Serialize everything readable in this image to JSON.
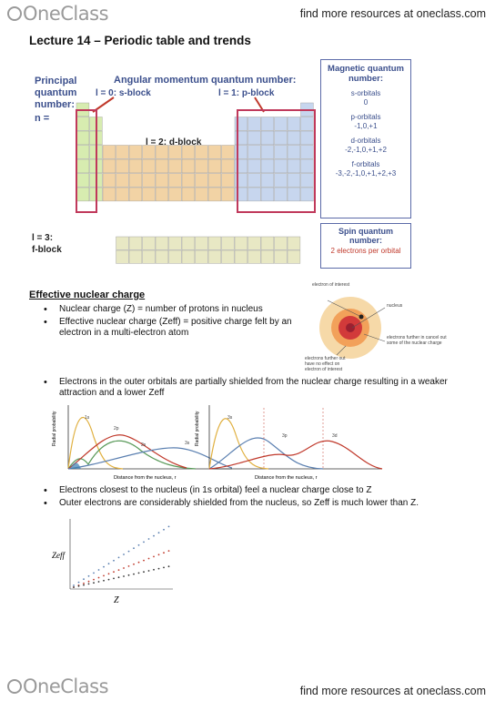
{
  "header": {
    "brand": "OneClass",
    "link": "find more resources at oneclass.com"
  },
  "footer": {
    "brand": "OneClass",
    "link": "find more resources at oneclass.com"
  },
  "title": "Lecture 14 – Periodic table and trends",
  "periodic_figure": {
    "principal_label": "Principal quantum number:",
    "n_label": "n =",
    "angular_label": "Angular momentum quantum number:",
    "l0_label": "l = 0: s-block",
    "l1_label": "l = 1: p-block",
    "l2_label": "l = 2: d-block",
    "l3_label": "l = 3:",
    "fblock_label": "f-block",
    "magnetic": {
      "title": "Magnetic quantum number:",
      "items": [
        {
          "name": "s-orbitals",
          "values": "0"
        },
        {
          "name": "p-orbitals",
          "values": "-1,0,+1"
        },
        {
          "name": "d-orbitals",
          "values": "-2,-1,0,+1,+2"
        },
        {
          "name": "f-orbitals",
          "values": "-3,-2,-1,0,+1,+2,+3"
        }
      ]
    },
    "spin": {
      "title": "Spin quantum number:",
      "value": "2 electrons per orbital"
    },
    "colors": {
      "red_label": "#c0392b",
      "blue_label": "#3b4f8c",
      "s_block": "#d7ecb0",
      "d_block": "#f2d3a5",
      "p_block": "#c7d6ee",
      "f_block": "#e8e8c4",
      "outline": "#c0395b"
    }
  },
  "section": {
    "heading": "Effective nuclear charge",
    "bullets": [
      "Nuclear charge (Z) = number of protons in nucleus",
      "Effective nuclear charge (Zeff) = positive charge felt by an electron in a multi-electron atom",
      "Electrons in the outer orbitals are partially shielded from the nuclear charge resulting in a weaker attraction and a lower Zeff",
      "Electrons closest to the nucleus (in 1s orbital) feel a nuclear charge close to Z",
      "Outer electrons are considerably shielded from the nucleus, so Zeff is much lower than Z."
    ]
  },
  "nucleus_figure": {
    "electron_of_interest": "electron of interest",
    "nucleus": "nucleus",
    "further_in": "electrons further in cancel out some of the nuclear charge",
    "further_out": "electrons further out have no effect on electron of interest"
  },
  "radial_figures": {
    "ylabel": "Radial probability",
    "xlabel": "Distance from the nucleus, r",
    "left_labels": [
      "1s",
      "2s",
      "2p",
      "3s"
    ],
    "right_labels": [
      "3s",
      "3p",
      "3d"
    ]
  },
  "zeff_figure": {
    "ylabel": "Zeff",
    "xlabel": "Z"
  }
}
